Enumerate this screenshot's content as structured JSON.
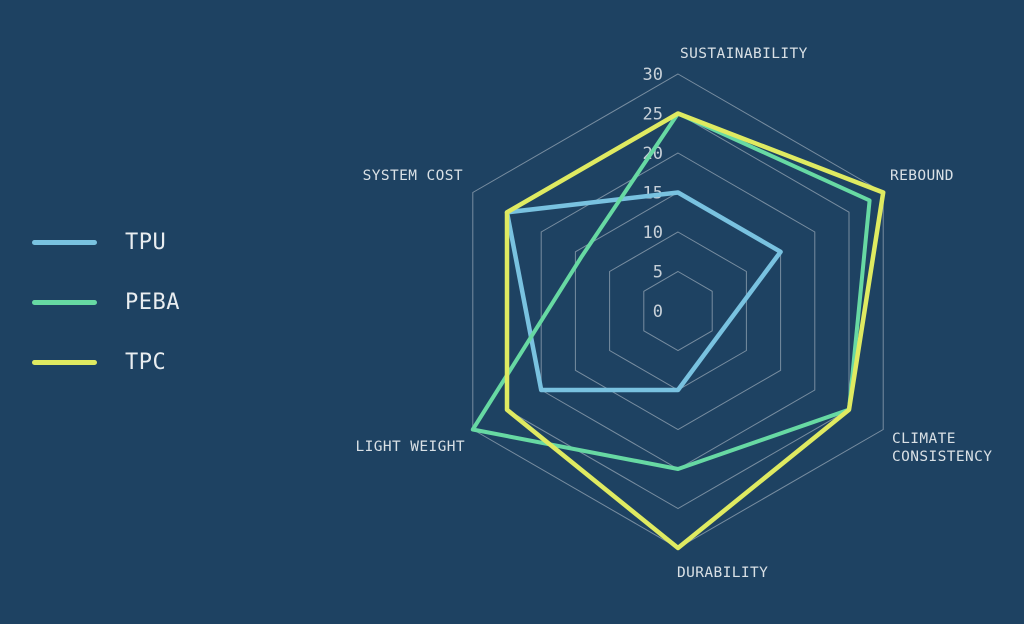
{
  "background_color": "#1E4262",
  "legend": {
    "items": [
      {
        "label": "TPU",
        "color": "#79C2E0"
      },
      {
        "label": "PEBA",
        "color": "#67D9A3"
      },
      {
        "label": "TPC",
        "color": "#DFEA61"
      }
    ]
  },
  "chart_data": {
    "type": "radar",
    "title": "",
    "categories": [
      "SUSTAINABILITY",
      "REBOUND",
      "CLIMATE CONSISTENCY",
      "DURABILITY",
      "LIGHT WEIGHT",
      "SYSTEM COST"
    ],
    "series": [
      {
        "name": "TPU",
        "color": "#79C2E0",
        "stroke_width": 4.5,
        "values": [
          15,
          15,
          6,
          10,
          20,
          25
        ]
      },
      {
        "name": "PEBA",
        "color": "#67D9A3",
        "stroke_width": 4,
        "values": [
          25,
          28,
          25,
          20,
          30,
          14
        ]
      },
      {
        "name": "TPC",
        "color": "#DFEA61",
        "stroke_width": 4.5,
        "values": [
          25,
          30,
          25,
          30,
          25,
          25
        ]
      }
    ],
    "axis": {
      "min": 0,
      "max": 30,
      "tick_interval": 5,
      "tick_labels": [
        "0",
        "5",
        "10",
        "15",
        "20",
        "25",
        "30"
      ]
    },
    "grid": {
      "shape": "hexagon",
      "rings": [
        5,
        10,
        15,
        20,
        25,
        30
      ],
      "spokes": false,
      "color": "rgba(255,255,255,0.40)"
    },
    "legend_position": "left"
  }
}
